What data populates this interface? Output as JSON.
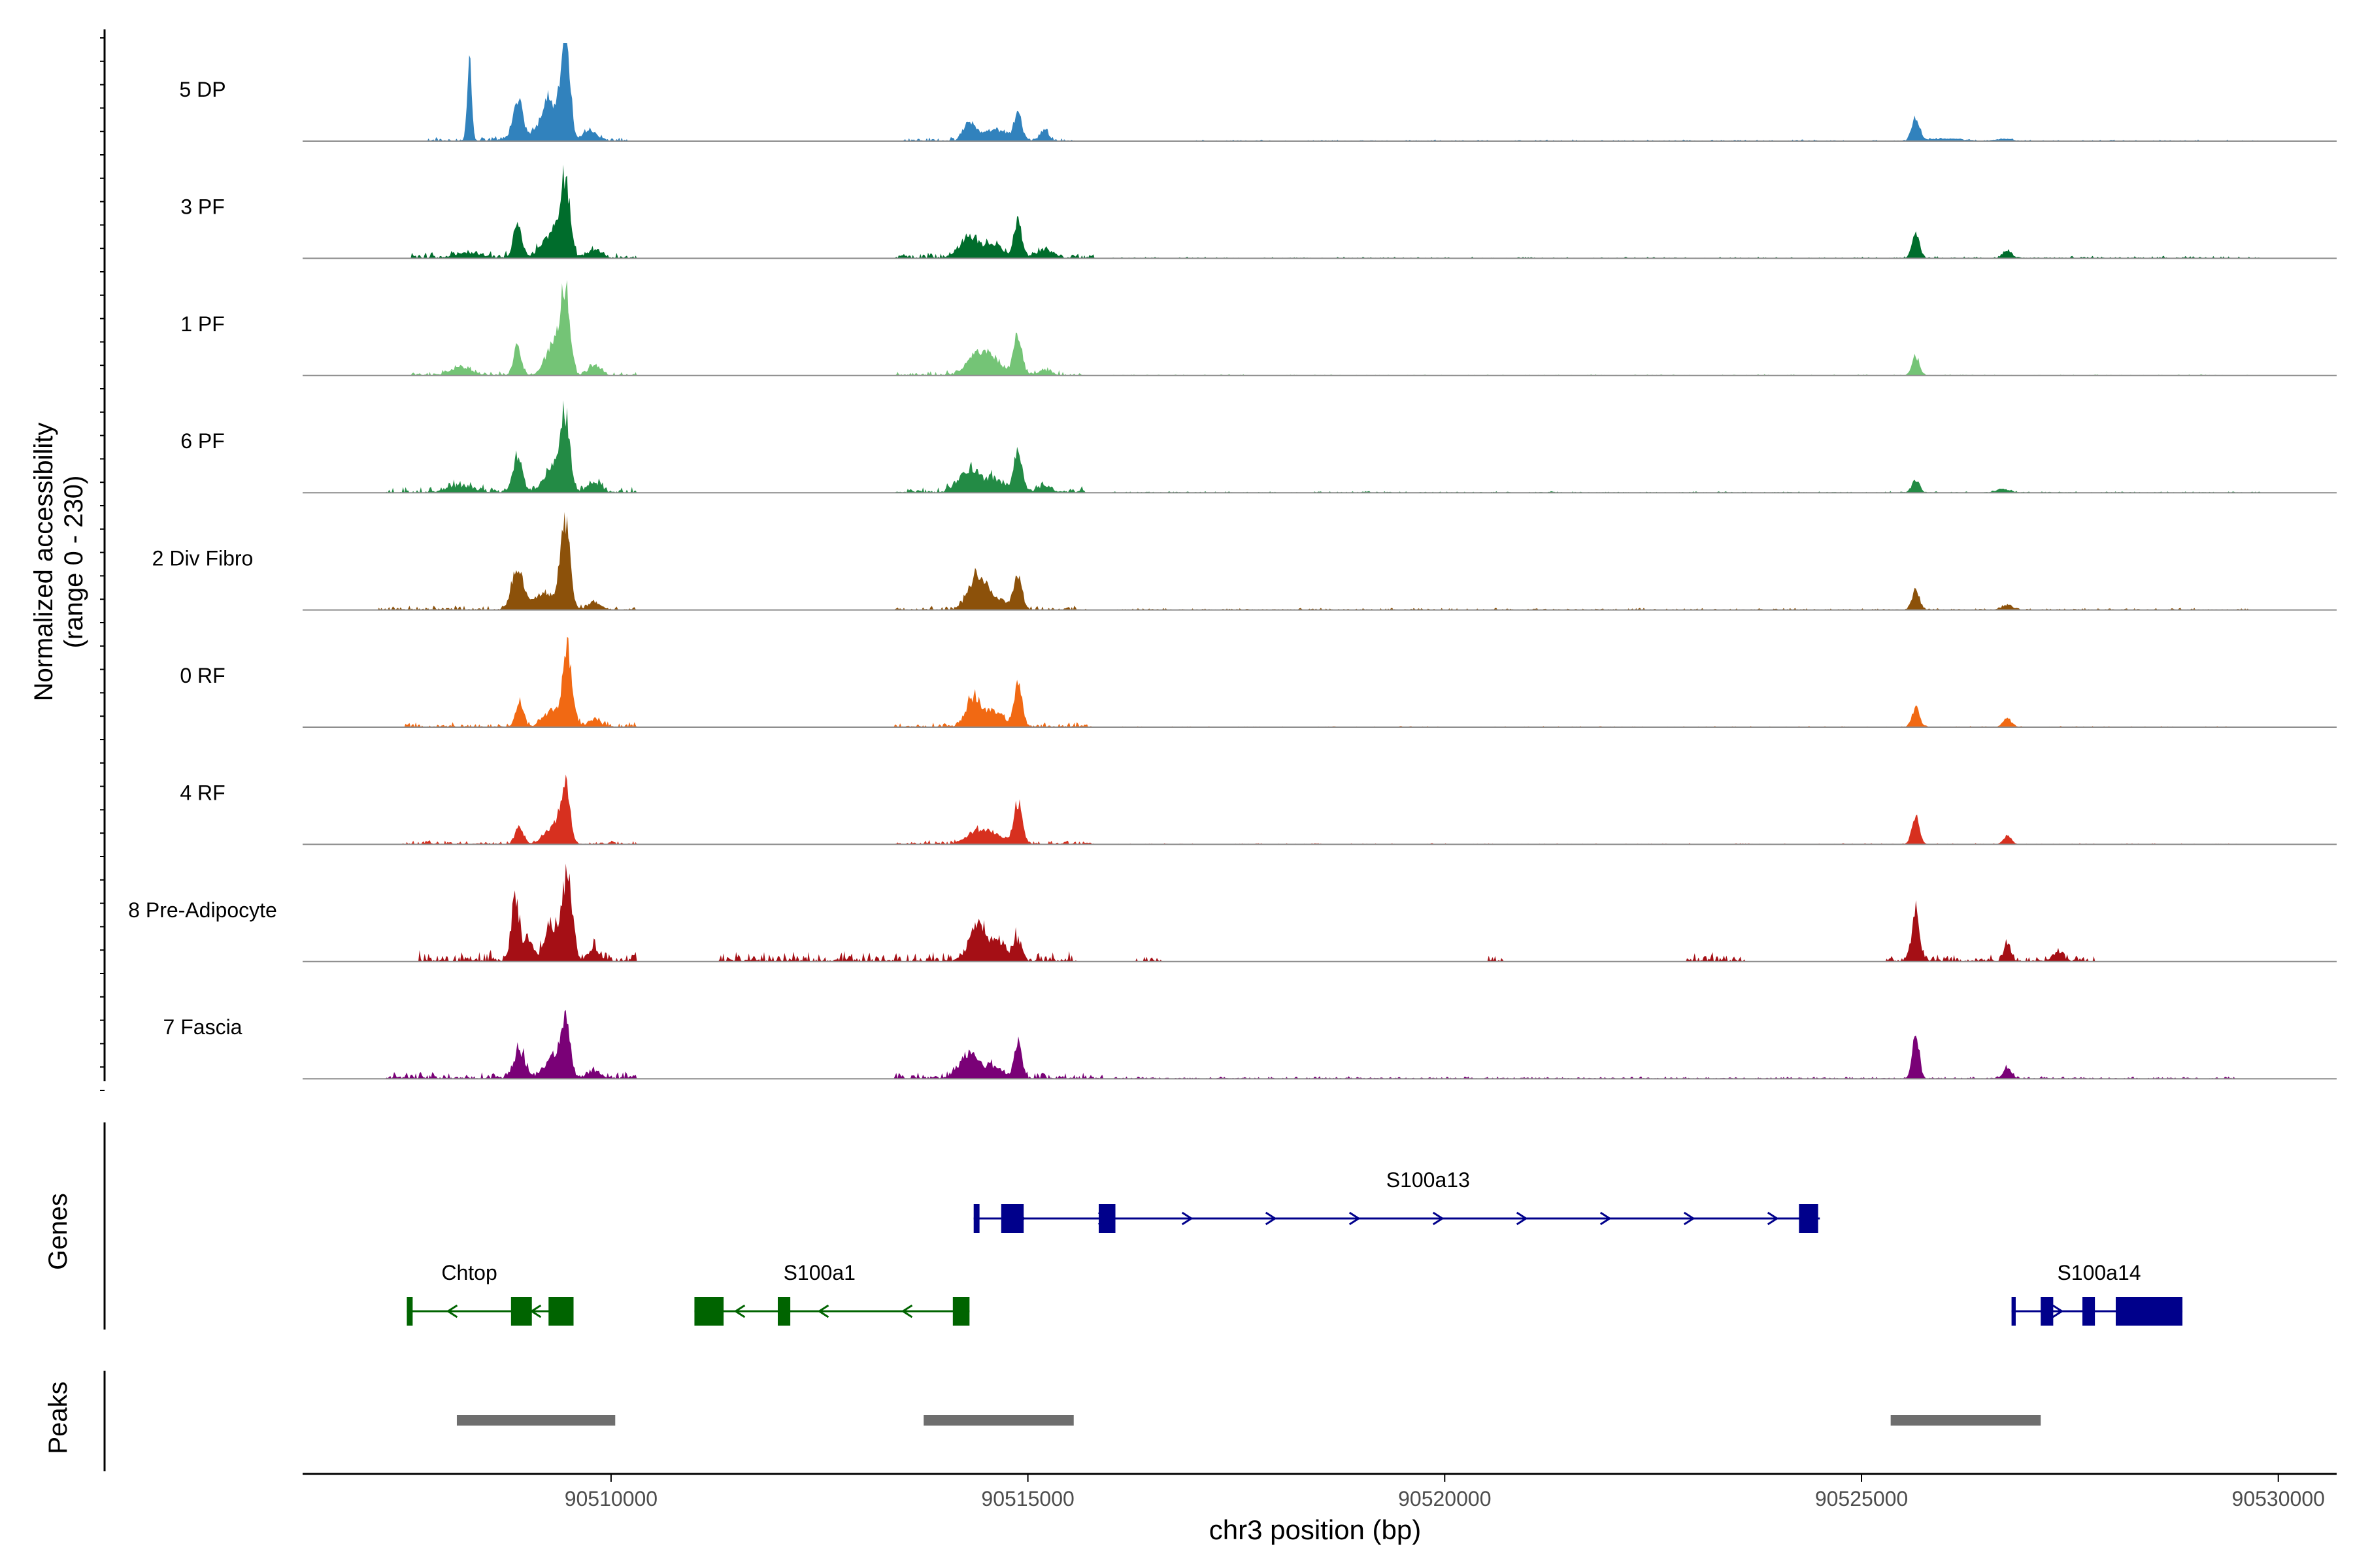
{
  "chart_data": {
    "type": "area",
    "title": "",
    "ylabel_line1": "Normalized accessibility",
    "ylabel_line2": "(range 0 - 230)",
    "ylim": [
      0,
      230
    ],
    "xlabel": "chr3 position (bp)",
    "xlim": [
      90506300,
      90530700
    ],
    "xticks": [
      90510000,
      90515000,
      90520000,
      90525000,
      90530000
    ],
    "xtick_labels": [
      "90510000",
      "90515000",
      "90520000",
      "90525000",
      "90530000"
    ],
    "tracks": [
      {
        "name": "5 DP",
        "color": "#3182BD",
        "peaks": [
          [
            90508300,
            210,
            25
          ],
          [
            90508880,
            85,
            50
          ],
          [
            90509000,
            15,
            200
          ],
          [
            90509450,
            230,
            55
          ],
          [
            90509250,
            100,
            80
          ],
          [
            90509750,
            25,
            80
          ],
          [
            90514300,
            40,
            70
          ],
          [
            90514600,
            25,
            150
          ],
          [
            90514880,
            65,
            45
          ],
          [
            90515200,
            25,
            50
          ],
          [
            90525650,
            55,
            45
          ],
          [
            90526000,
            6,
            200
          ],
          [
            90526700,
            5,
            100
          ]
        ],
        "noise": [
          [
            90507800,
            90510200,
            6
          ],
          [
            90513500,
            90515600,
            5
          ],
          [
            90517000,
            90527000,
            2
          ],
          [
            90527000,
            90529800,
            2
          ]
        ]
      },
      {
        "name": "3 PF",
        "color": "#006D2C",
        "peaks": [
          [
            90508300,
            12,
            150
          ],
          [
            90508880,
            75,
            50
          ],
          [
            90509450,
            165,
            55
          ],
          [
            90509300,
            60,
            120
          ],
          [
            90509800,
            20,
            80
          ],
          [
            90514300,
            45,
            120
          ],
          [
            90514600,
            30,
            100
          ],
          [
            90514880,
            90,
            45
          ],
          [
            90515200,
            20,
            90
          ],
          [
            90525650,
            55,
            45
          ],
          [
            90526750,
            18,
            50
          ]
        ],
        "noise": [
          [
            90507600,
            90510300,
            8
          ],
          [
            90513400,
            90515800,
            8
          ],
          [
            90516000,
            90525300,
            2
          ],
          [
            90525300,
            90529800,
            3
          ]
        ]
      },
      {
        "name": "1 PF",
        "color": "#74C476",
        "peaks": [
          [
            90508200,
            18,
            120
          ],
          [
            90508880,
            70,
            45
          ],
          [
            90509450,
            195,
            55
          ],
          [
            90509300,
            70,
            90
          ],
          [
            90509800,
            25,
            70
          ],
          [
            90514400,
            50,
            120
          ],
          [
            90514600,
            30,
            100
          ],
          [
            90514880,
            95,
            50
          ],
          [
            90515200,
            12,
            80
          ],
          [
            90525650,
            45,
            45
          ]
        ],
        "noise": [
          [
            90507600,
            90510300,
            6
          ],
          [
            90513400,
            90515700,
            6
          ],
          [
            90516000,
            90529800,
            1.5
          ]
        ]
      },
      {
        "name": "6 PF",
        "color": "#238B45",
        "peaks": [
          [
            90508200,
            15,
            150
          ],
          [
            90508880,
            85,
            55
          ],
          [
            90509450,
            165,
            55
          ],
          [
            90509300,
            60,
            100
          ],
          [
            90509800,
            22,
            80
          ],
          [
            90514300,
            55,
            120
          ],
          [
            90514600,
            30,
            100
          ],
          [
            90514880,
            95,
            50
          ],
          [
            90515200,
            15,
            80
          ],
          [
            90525650,
            30,
            45
          ],
          [
            90526700,
            8,
            80
          ]
        ],
        "noise": [
          [
            90507300,
            90510300,
            8
          ],
          [
            90513400,
            90515700,
            8
          ],
          [
            90516000,
            90529800,
            2
          ]
        ]
      },
      {
        "name": "2 Div Fibro",
        "color": "#8C510A",
        "peaks": [
          [
            90508880,
            95,
            70
          ],
          [
            90509450,
            205,
            55
          ],
          [
            90509200,
            40,
            120
          ],
          [
            90509800,
            15,
            80
          ],
          [
            90514400,
            80,
            110
          ],
          [
            90514650,
            20,
            120
          ],
          [
            90514880,
            80,
            50
          ],
          [
            90525650,
            45,
            45
          ],
          [
            90526750,
            12,
            60
          ]
        ],
        "noise": [
          [
            90507200,
            90510300,
            6
          ],
          [
            90513400,
            90515700,
            6
          ],
          [
            90516000,
            90529700,
            2.5
          ]
        ]
      },
      {
        "name": "0 RF",
        "color": "#F16913",
        "peaks": [
          [
            90508900,
            60,
            45
          ],
          [
            90509480,
            175,
            55
          ],
          [
            90509300,
            40,
            100
          ],
          [
            90509800,
            15,
            80
          ],
          [
            90514350,
            65,
            90
          ],
          [
            90514600,
            35,
            100
          ],
          [
            90514880,
            95,
            50
          ],
          [
            90525650,
            45,
            45
          ],
          [
            90526750,
            20,
            50
          ]
        ],
        "noise": [
          [
            90507500,
            90510300,
            7
          ],
          [
            90513400,
            90515800,
            7
          ],
          [
            90516000,
            90529500,
            1.5
          ]
        ]
      },
      {
        "name": "4 RF",
        "color": "#D7301F",
        "peaks": [
          [
            90508900,
            40,
            50
          ],
          [
            90509450,
            130,
            55
          ],
          [
            90509300,
            40,
            100
          ],
          [
            90514400,
            30,
            120
          ],
          [
            90514600,
            20,
            100
          ],
          [
            90514880,
            95,
            50
          ],
          [
            90525650,
            70,
            45
          ],
          [
            90526750,
            20,
            50
          ]
        ],
        "noise": [
          [
            90507500,
            90510300,
            5
          ],
          [
            90513400,
            90515800,
            6
          ],
          [
            90516000,
            90529500,
            1.5
          ]
        ]
      },
      {
        "name": "8 Pre-Adipocyte",
        "color": "#A50F15",
        "peaks": [
          [
            90508850,
            140,
            45
          ],
          [
            90509000,
            45,
            60
          ],
          [
            90509480,
            210,
            55
          ],
          [
            90509300,
            80,
            90
          ],
          [
            90509800,
            25,
            70
          ],
          [
            90514400,
            80,
            100
          ],
          [
            90514650,
            40,
            100
          ],
          [
            90514880,
            45,
            50
          ],
          [
            90525650,
            120,
            45
          ],
          [
            90526750,
            45,
            40
          ],
          [
            90527350,
            20,
            60
          ]
        ],
        "noise": [
          [
            90507700,
            90510300,
            14
          ],
          [
            90511300,
            90515600,
            14
          ],
          [
            90516300,
            90516600,
            10
          ],
          [
            90520500,
            90520700,
            10
          ],
          [
            90522900,
            90523600,
            12
          ],
          [
            90525300,
            90527800,
            10
          ]
        ]
      },
      {
        "name": "7 Fascia",
        "color": "#7A0177",
        "peaks": [
          [
            90508900,
            60,
            70
          ],
          [
            90509450,
            125,
            55
          ],
          [
            90509300,
            45,
            100
          ],
          [
            90509800,
            15,
            80
          ],
          [
            90514300,
            55,
            120
          ],
          [
            90514600,
            25,
            100
          ],
          [
            90514880,
            85,
            45
          ],
          [
            90525650,
            115,
            40
          ],
          [
            90526750,
            25,
            50
          ]
        ],
        "noise": [
          [
            90507300,
            90510300,
            10
          ],
          [
            90513400,
            90515900,
            10
          ],
          [
            90516000,
            90529500,
            3
          ]
        ]
      }
    ],
    "genes_label": "Genes",
    "genes": [
      {
        "name": "S100a13",
        "color": "#00008B",
        "strand": "+",
        "start": 90514350,
        "end": 90524500,
        "row": 1,
        "exons": [
          [
            90514350,
            90514420
          ],
          [
            90514680,
            90514950
          ],
          [
            90515850,
            90516050
          ],
          [
            90524250,
            90524480
          ]
        ],
        "label_pos": 90519800
      },
      {
        "name": "Chtop",
        "color": "#006400",
        "strand": "-",
        "start": 90507550,
        "end": 90509550,
        "row": 2,
        "exons": [
          [
            90507550,
            90507620
          ],
          [
            90508800,
            90509050
          ],
          [
            90509250,
            90509550
          ]
        ],
        "label_pos": 90508300
      },
      {
        "name": "S100a1",
        "color": "#006400",
        "strand": "-",
        "start": 90511000,
        "end": 90514300,
        "row": 2,
        "exons": [
          [
            90511000,
            90511350
          ],
          [
            90512000,
            90512150
          ],
          [
            90514100,
            90514300
          ]
        ],
        "label_pos": 90512500
      },
      {
        "name": "S100a14",
        "color": "#00008B",
        "strand": "+",
        "start": 90526800,
        "end": 90528850,
        "row": 2,
        "exons": [
          [
            90526800,
            90526850
          ],
          [
            90527150,
            90527300
          ],
          [
            90527650,
            90527800
          ],
          [
            90528050,
            90528850
          ]
        ],
        "label_pos": 90527850
      }
    ],
    "peaks_label": "Peaks",
    "peak_regions": [
      [
        90508150,
        90510050
      ],
      [
        90513750,
        90515550
      ],
      [
        90525350,
        90527150
      ]
    ],
    "peak_color": "#6E6E6E"
  }
}
